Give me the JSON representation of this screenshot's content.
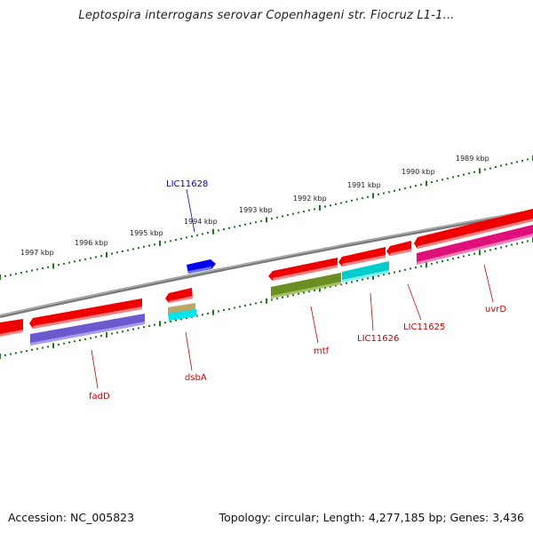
{
  "title": "Leptospira interrogans serovar Copenhageni str. Fiocruz L1-1...",
  "footer": {
    "accession": "Accession: NC_005823",
    "summary": "Topology: circular; Length: 4,277,185 bp; Genes: 3,436"
  },
  "colors": {
    "backbone": "#808080",
    "tick": "#1a7a1a",
    "label_red": "#cc0000",
    "label_blue": "#0000cc"
  },
  "scale_labels": [
    "1997 kbp",
    "1996 kbp",
    "1995 kbp",
    "1994 kbp",
    "1993 kbp",
    "1992 kbp",
    "1991 kbp",
    "1990 kbp",
    "1989 kbp"
  ],
  "gene_labels": [
    {
      "text": "fadD",
      "color": "#cc0000"
    },
    {
      "text": "dsbA",
      "color": "#cc0000"
    },
    {
      "text": "LIC11628",
      "color": "#0000cc"
    },
    {
      "text": "mtf",
      "color": "#cc0000"
    },
    {
      "text": "LIC11626",
      "color": "#cc0000"
    },
    {
      "text": "LIC11625",
      "color": "#cc0000"
    },
    {
      "text": "uvrD",
      "color": "#cc0000"
    }
  ]
}
